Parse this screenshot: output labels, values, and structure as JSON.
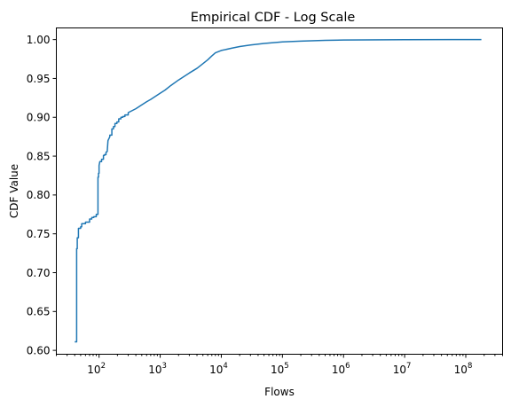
{
  "chart_data": {
    "type": "line",
    "title": "Empirical CDF - Log Scale",
    "xlabel": "Flows",
    "ylabel": "CDF Value",
    "xscale": "log",
    "xlim": [
      20,
      400000000
    ],
    "ylim": [
      0.595,
      1.015
    ],
    "grid": false,
    "line_color": "#1f77b4",
    "x_ticks": [
      {
        "value": 100,
        "base": "10",
        "exp": "2"
      },
      {
        "value": 1000,
        "base": "10",
        "exp": "3"
      },
      {
        "value": 10000,
        "base": "10",
        "exp": "4"
      },
      {
        "value": 100000,
        "base": "10",
        "exp": "5"
      },
      {
        "value": 1000000,
        "base": "10",
        "exp": "6"
      },
      {
        "value": 10000000,
        "base": "10",
        "exp": "7"
      },
      {
        "value": 100000000,
        "base": "10",
        "exp": "8"
      }
    ],
    "y_ticks": [
      {
        "value": 0.6,
        "label": "0.60"
      },
      {
        "value": 0.65,
        "label": "0.65"
      },
      {
        "value": 0.7,
        "label": "0.70"
      },
      {
        "value": 0.75,
        "label": "0.75"
      },
      {
        "value": 0.8,
        "label": "0.80"
      },
      {
        "value": 0.85,
        "label": "0.85"
      },
      {
        "value": 0.9,
        "label": "0.90"
      },
      {
        "value": 0.95,
        "label": "0.95"
      },
      {
        "value": 1.0,
        "label": "1.00"
      }
    ],
    "series": [
      {
        "x": [
          40,
          43,
          43,
          44,
          44,
          46,
          46,
          50,
          50,
          52,
          52,
          60,
          60,
          70,
          70,
          76,
          76,
          82,
          82,
          90,
          90,
          96,
          96,
          98,
          98,
          100,
          100,
          103,
          106,
          110,
          110,
          118,
          118,
          123,
          123,
          130,
          130,
          136,
          140,
          150,
          150,
          162,
          162,
          172,
          172,
          182,
          182,
          196,
          196,
          210,
          210,
          228,
          228,
          245,
          245,
          265,
          265,
          300,
          300,
          400,
          500,
          600,
          700,
          800,
          1000,
          1200,
          1500,
          2000,
          3000,
          4000,
          5000,
          6000,
          7000,
          8000,
          10000,
          15000,
          20000,
          30000,
          50000,
          100000,
          200000,
          500000,
          1000000,
          10000000,
          100000000,
          180000000
        ],
        "y": [
          0.611,
          0.611,
          0.731,
          0.731,
          0.745,
          0.745,
          0.757,
          0.757,
          0.759,
          0.759,
          0.763,
          0.763,
          0.765,
          0.765,
          0.769,
          0.769,
          0.771,
          0.771,
          0.772,
          0.772,
          0.775,
          0.775,
          0.823,
          0.823,
          0.828,
          0.828,
          0.838,
          0.843,
          0.843,
          0.843,
          0.846,
          0.846,
          0.851,
          0.851,
          0.852,
          0.852,
          0.855,
          0.856,
          0.87,
          0.875,
          0.877,
          0.877,
          0.885,
          0.885,
          0.888,
          0.888,
          0.892,
          0.892,
          0.894,
          0.894,
          0.898,
          0.898,
          0.9,
          0.9,
          0.901,
          0.901,
          0.903,
          0.903,
          0.906,
          0.911,
          0.916,
          0.92,
          0.923,
          0.926,
          0.931,
          0.935,
          0.941,
          0.948,
          0.957,
          0.963,
          0.969,
          0.974,
          0.979,
          0.983,
          0.986,
          0.989,
          0.991,
          0.993,
          0.995,
          0.997,
          0.998,
          0.999,
          0.9995,
          0.9999,
          1.0,
          1.0
        ]
      }
    ]
  }
}
